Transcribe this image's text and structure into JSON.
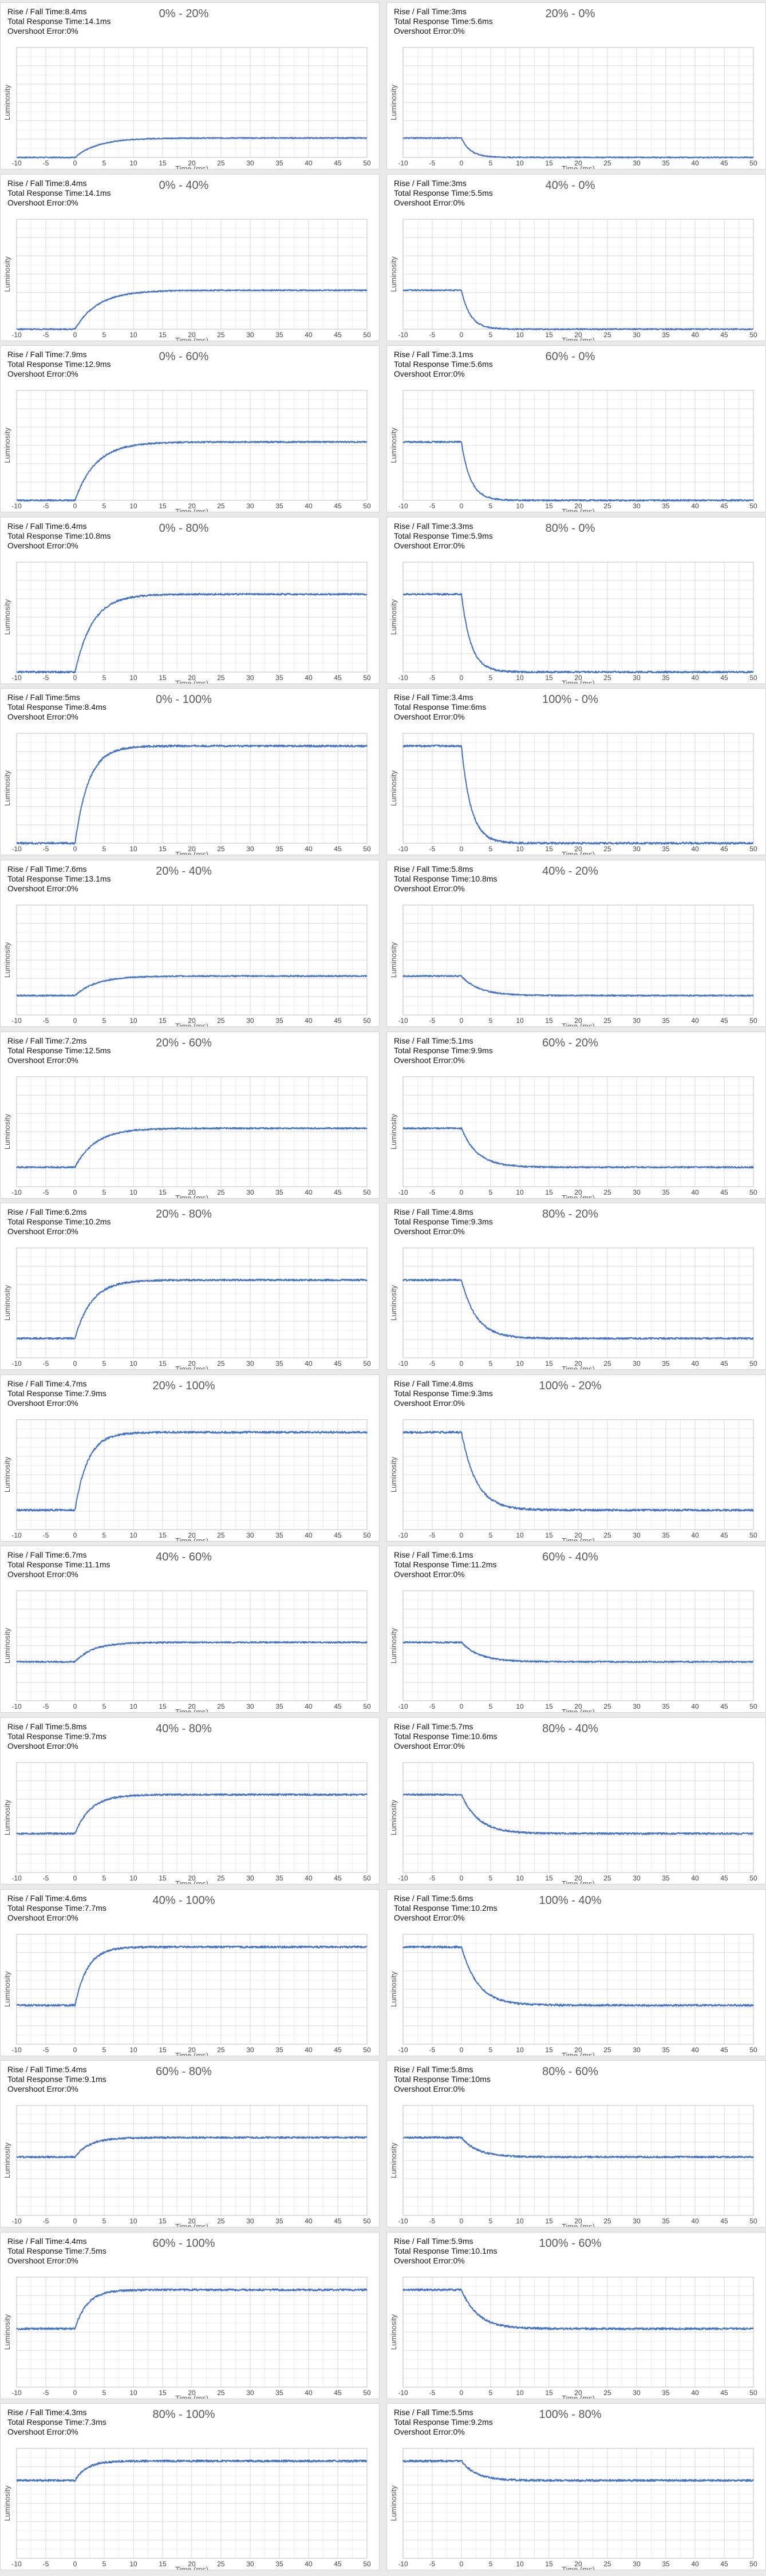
{
  "colors": {
    "curve": "#4472c4",
    "grid_major": "#d9d9d9",
    "grid_minor": "#eeeeee",
    "axis": "#bfbfbf"
  },
  "stat_labels": {
    "rise_fall": "Rise / Fall Time:",
    "total": "Total Response Time:",
    "overshoot": "Overshoot Error:"
  },
  "chart_data": [
    {
      "type": "line",
      "direction": "rise",
      "title": "0% - 20%",
      "rise_fall": "8.4ms",
      "total": "14.1ms",
      "overshoot": "0%",
      "from_level": 0.0,
      "to_level": 0.2,
      "xlabel": "Time (ms)",
      "ylabel": "Luminosity",
      "x_ticks": [
        -10,
        -5,
        0,
        5,
        10,
        15,
        20,
        25,
        30,
        35,
        40,
        45,
        50
      ],
      "xlim": [
        -10,
        50
      ]
    },
    {
      "type": "line",
      "direction": "fall",
      "title": "20% - 0%",
      "rise_fall": "3ms",
      "total": "5.6ms",
      "overshoot": "0%",
      "from_level": 0.2,
      "to_level": 0.0,
      "xlabel": "Time (ms)",
      "ylabel": "Luminosity",
      "x_ticks": [
        -10,
        -5,
        0,
        5,
        10,
        15,
        20,
        25,
        30,
        35,
        40,
        45,
        50
      ],
      "xlim": [
        -10,
        50
      ]
    },
    {
      "type": "line",
      "direction": "rise",
      "title": "0% - 40%",
      "rise_fall": "8.4ms",
      "total": "14.1ms",
      "overshoot": "0%",
      "from_level": 0.0,
      "to_level": 0.4,
      "xlabel": "Time (ms)",
      "ylabel": "Luminosity",
      "x_ticks": [
        -10,
        -5,
        0,
        5,
        10,
        15,
        20,
        25,
        30,
        35,
        40,
        45,
        50
      ],
      "xlim": [
        -10,
        50
      ]
    },
    {
      "type": "line",
      "direction": "fall",
      "title": "40% - 0%",
      "rise_fall": "3ms",
      "total": "5.5ms",
      "overshoot": "0%",
      "from_level": 0.4,
      "to_level": 0.0,
      "xlabel": "Time (ms)",
      "ylabel": "Luminosity",
      "x_ticks": [
        -10,
        -5,
        0,
        5,
        10,
        15,
        20,
        25,
        30,
        35,
        40,
        45,
        50
      ],
      "xlim": [
        -10,
        50
      ]
    },
    {
      "type": "line",
      "direction": "rise",
      "title": "0% - 60%",
      "rise_fall": "7.9ms",
      "total": "12.9ms",
      "overshoot": "0%",
      "from_level": 0.0,
      "to_level": 0.6,
      "xlabel": "Time (ms)",
      "ylabel": "Luminosity",
      "x_ticks": [
        -10,
        -5,
        0,
        5,
        10,
        15,
        20,
        25,
        30,
        35,
        40,
        45,
        50
      ],
      "xlim": [
        -10,
        50
      ]
    },
    {
      "type": "line",
      "direction": "fall",
      "title": "60% - 0%",
      "rise_fall": "3.1ms",
      "total": "5.6ms",
      "overshoot": "0%",
      "from_level": 0.6,
      "to_level": 0.0,
      "xlabel": "Time (ms)",
      "ylabel": "Luminosity",
      "x_ticks": [
        -10,
        -5,
        0,
        5,
        10,
        15,
        20,
        25,
        30,
        35,
        40,
        45,
        50
      ],
      "xlim": [
        -10,
        50
      ]
    },
    {
      "type": "line",
      "direction": "rise",
      "title": "0% - 80%",
      "rise_fall": "6.4ms",
      "total": "10.8ms",
      "overshoot": "0%",
      "from_level": 0.0,
      "to_level": 0.8,
      "xlabel": "Time (ms)",
      "ylabel": "Luminosity",
      "x_ticks": [
        -10,
        -5,
        0,
        5,
        10,
        15,
        20,
        25,
        30,
        35,
        40,
        45,
        50
      ],
      "xlim": [
        -10,
        50
      ]
    },
    {
      "type": "line",
      "direction": "fall",
      "title": "80% - 0%",
      "rise_fall": "3.3ms",
      "total": "5.9ms",
      "overshoot": "0%",
      "from_level": 0.8,
      "to_level": 0.0,
      "xlabel": "Time (ms)",
      "ylabel": "Luminosity",
      "x_ticks": [
        -10,
        -5,
        0,
        5,
        10,
        15,
        20,
        25,
        30,
        35,
        40,
        45,
        50
      ],
      "xlim": [
        -10,
        50
      ]
    },
    {
      "type": "line",
      "direction": "rise",
      "title": "0% - 100%",
      "rise_fall": "5ms",
      "total": "8.4ms",
      "overshoot": "0%",
      "from_level": 0.0,
      "to_level": 1.0,
      "xlabel": "Time (ms)",
      "ylabel": "Luminosity",
      "x_ticks": [
        -10,
        -5,
        0,
        5,
        10,
        15,
        20,
        25,
        30,
        35,
        40,
        45,
        50
      ],
      "xlim": [
        -10,
        50
      ]
    },
    {
      "type": "line",
      "direction": "fall",
      "title": "100% - 0%",
      "rise_fall": "3.4ms",
      "total": "6ms",
      "overshoot": "0%",
      "from_level": 1.0,
      "to_level": 0.0,
      "xlabel": "Time (ms)",
      "ylabel": "Luminosity",
      "x_ticks": [
        -10,
        -5,
        0,
        5,
        10,
        15,
        20,
        25,
        30,
        35,
        40,
        45,
        50
      ],
      "xlim": [
        -10,
        50
      ]
    },
    {
      "type": "line",
      "direction": "rise",
      "title": "20% - 40%",
      "rise_fall": "7.6ms",
      "total": "13.1ms",
      "overshoot": "0%",
      "from_level": 0.2,
      "to_level": 0.4,
      "xlabel": "Time (ms)",
      "ylabel": "Luminosity",
      "x_ticks": [
        -10,
        -5,
        0,
        5,
        10,
        15,
        20,
        25,
        30,
        35,
        40,
        45,
        50
      ],
      "xlim": [
        -10,
        50
      ]
    },
    {
      "type": "line",
      "direction": "fall",
      "title": "40% - 20%",
      "rise_fall": "5.8ms",
      "total": "10.8ms",
      "overshoot": "0%",
      "from_level": 0.4,
      "to_level": 0.2,
      "xlabel": "Time (ms)",
      "ylabel": "Luminosity",
      "x_ticks": [
        -10,
        -5,
        0,
        5,
        10,
        15,
        20,
        25,
        30,
        35,
        40,
        45,
        50
      ],
      "xlim": [
        -10,
        50
      ]
    },
    {
      "type": "line",
      "direction": "rise",
      "title": "20% - 60%",
      "rise_fall": "7.2ms",
      "total": "12.5ms",
      "overshoot": "0%",
      "from_level": 0.2,
      "to_level": 0.6,
      "xlabel": "Time (ms)",
      "ylabel": "Luminosity",
      "x_ticks": [
        -10,
        -5,
        0,
        5,
        10,
        15,
        20,
        25,
        30,
        35,
        40,
        45,
        50
      ],
      "xlim": [
        -10,
        50
      ]
    },
    {
      "type": "line",
      "direction": "fall",
      "title": "60% - 20%",
      "rise_fall": "5.1ms",
      "total": "9.9ms",
      "overshoot": "0%",
      "from_level": 0.6,
      "to_level": 0.2,
      "xlabel": "Time (ms)",
      "ylabel": "Luminosity",
      "x_ticks": [
        -10,
        -5,
        0,
        5,
        10,
        15,
        20,
        25,
        30,
        35,
        40,
        45,
        50
      ],
      "xlim": [
        -10,
        50
      ]
    },
    {
      "type": "line",
      "direction": "rise",
      "title": "20% - 80%",
      "rise_fall": "6.2ms",
      "total": "10.2ms",
      "overshoot": "0%",
      "from_level": 0.2,
      "to_level": 0.8,
      "xlabel": "Time (ms)",
      "ylabel": "Luminosity",
      "x_ticks": [
        -10,
        -5,
        0,
        5,
        10,
        15,
        20,
        25,
        30,
        35,
        40,
        45,
        50
      ],
      "xlim": [
        -10,
        50
      ]
    },
    {
      "type": "line",
      "direction": "fall",
      "title": "80% - 20%",
      "rise_fall": "4.8ms",
      "total": "9.3ms",
      "overshoot": "0%",
      "from_level": 0.8,
      "to_level": 0.2,
      "xlabel": "Time (ms)",
      "ylabel": "Luminosity",
      "x_ticks": [
        -10,
        -5,
        0,
        5,
        10,
        15,
        20,
        25,
        30,
        35,
        40,
        45,
        50
      ],
      "xlim": [
        -10,
        50
      ]
    },
    {
      "type": "line",
      "direction": "rise",
      "title": "20% - 100%",
      "rise_fall": "4.7ms",
      "total": "7.9ms",
      "overshoot": "0%",
      "from_level": 0.2,
      "to_level": 1.0,
      "xlabel": "Time (ms)",
      "ylabel": "Luminosity",
      "x_ticks": [
        -10,
        -5,
        0,
        5,
        10,
        15,
        20,
        25,
        30,
        35,
        40,
        45,
        50
      ],
      "xlim": [
        -10,
        50
      ]
    },
    {
      "type": "line",
      "direction": "fall",
      "title": "100% - 20%",
      "rise_fall": "4.8ms",
      "total": "9.3ms",
      "overshoot": "0%",
      "from_level": 1.0,
      "to_level": 0.2,
      "xlabel": "Time (ms)",
      "ylabel": "Luminosity",
      "x_ticks": [
        -10,
        -5,
        0,
        5,
        10,
        15,
        20,
        25,
        30,
        35,
        40,
        45,
        50
      ],
      "xlim": [
        -10,
        50
      ]
    },
    {
      "type": "line",
      "direction": "rise",
      "title": "40% - 60%",
      "rise_fall": "6.7ms",
      "total": "11.1ms",
      "overshoot": "0%",
      "from_level": 0.4,
      "to_level": 0.6,
      "xlabel": "Time (ms)",
      "ylabel": "Luminosity",
      "x_ticks": [
        -10,
        -5,
        0,
        5,
        10,
        15,
        20,
        25,
        30,
        35,
        40,
        45,
        50
      ],
      "xlim": [
        -10,
        50
      ]
    },
    {
      "type": "line",
      "direction": "fall",
      "title": "60% - 40%",
      "rise_fall": "6.1ms",
      "total": "11.2ms",
      "overshoot": "0%",
      "from_level": 0.6,
      "to_level": 0.4,
      "xlabel": "Time (ms)",
      "ylabel": "Luminosity",
      "x_ticks": [
        -10,
        -5,
        0,
        5,
        10,
        15,
        20,
        25,
        30,
        35,
        40,
        45,
        50
      ],
      "xlim": [
        -10,
        50
      ]
    },
    {
      "type": "line",
      "direction": "rise",
      "title": "40% - 80%",
      "rise_fall": "5.8ms",
      "total": "9.7ms",
      "overshoot": "0%",
      "from_level": 0.4,
      "to_level": 0.8,
      "xlabel": "Time (ms)",
      "ylabel": "Luminosity",
      "x_ticks": [
        -10,
        -5,
        0,
        5,
        10,
        15,
        20,
        25,
        30,
        35,
        40,
        45,
        50
      ],
      "xlim": [
        -10,
        50
      ]
    },
    {
      "type": "line",
      "direction": "fall",
      "title": "80% - 40%",
      "rise_fall": "5.7ms",
      "total": "10.6ms",
      "overshoot": "0%",
      "from_level": 0.8,
      "to_level": 0.4,
      "xlabel": "Time (ms)",
      "ylabel": "Luminosity",
      "x_ticks": [
        -10,
        -5,
        0,
        5,
        10,
        15,
        20,
        25,
        30,
        35,
        40,
        45,
        50
      ],
      "xlim": [
        -10,
        50
      ]
    },
    {
      "type": "line",
      "direction": "rise",
      "title": "40% - 100%",
      "rise_fall": "4.6ms",
      "total": "7.7ms",
      "overshoot": "0%",
      "from_level": 0.4,
      "to_level": 1.0,
      "xlabel": "Time (ms)",
      "ylabel": "Luminosity",
      "x_ticks": [
        -10,
        -5,
        0,
        5,
        10,
        15,
        20,
        25,
        30,
        35,
        40,
        45,
        50
      ],
      "xlim": [
        -10,
        50
      ]
    },
    {
      "type": "line",
      "direction": "fall",
      "title": "100% - 40%",
      "rise_fall": "5.6ms",
      "total": "10.2ms",
      "overshoot": "0%",
      "from_level": 1.0,
      "to_level": 0.4,
      "xlabel": "Time (ms)",
      "ylabel": "Luminosity",
      "x_ticks": [
        -10,
        -5,
        0,
        5,
        10,
        15,
        20,
        25,
        30,
        35,
        40,
        45,
        50
      ],
      "xlim": [
        -10,
        50
      ]
    },
    {
      "type": "line",
      "direction": "rise",
      "title": "60% - 80%",
      "rise_fall": "5.4ms",
      "total": "9.1ms",
      "overshoot": "0%",
      "from_level": 0.6,
      "to_level": 0.8,
      "xlabel": "Time (ms)",
      "ylabel": "Luminosity",
      "x_ticks": [
        -10,
        -5,
        0,
        5,
        10,
        15,
        20,
        25,
        30,
        35,
        40,
        45,
        50
      ],
      "xlim": [
        -10,
        50
      ]
    },
    {
      "type": "line",
      "direction": "fall",
      "title": "80% - 60%",
      "rise_fall": "5.8ms",
      "total": "10ms",
      "overshoot": "0%",
      "from_level": 0.8,
      "to_level": 0.6,
      "xlabel": "Time (ms)",
      "ylabel": "Luminosity",
      "x_ticks": [
        -10,
        -5,
        0,
        5,
        10,
        15,
        20,
        25,
        30,
        35,
        40,
        45,
        50
      ],
      "xlim": [
        -10,
        50
      ]
    },
    {
      "type": "line",
      "direction": "rise",
      "title": "60% - 100%",
      "rise_fall": "4.4ms",
      "total": "7.5ms",
      "overshoot": "0%",
      "from_level": 0.6,
      "to_level": 1.0,
      "xlabel": "Time (ms)",
      "ylabel": "Luminosity",
      "x_ticks": [
        -10,
        -5,
        0,
        5,
        10,
        15,
        20,
        25,
        30,
        35,
        40,
        45,
        50
      ],
      "xlim": [
        -10,
        50
      ]
    },
    {
      "type": "line",
      "direction": "fall",
      "title": "100% - 60%",
      "rise_fall": "5.9ms",
      "total": "10.1ms",
      "overshoot": "0%",
      "from_level": 1.0,
      "to_level": 0.6,
      "xlabel": "Time (ms)",
      "ylabel": "Luminosity",
      "x_ticks": [
        -10,
        -5,
        0,
        5,
        10,
        15,
        20,
        25,
        30,
        35,
        40,
        45,
        50
      ],
      "xlim": [
        -10,
        50
      ]
    },
    {
      "type": "line",
      "direction": "rise",
      "title": "80% - 100%",
      "rise_fall": "4.3ms",
      "total": "7.3ms",
      "overshoot": "0%",
      "from_level": 0.8,
      "to_level": 1.0,
      "xlabel": "Time (ms)",
      "ylabel": "Luminosity",
      "x_ticks": [
        -10,
        -5,
        0,
        5,
        10,
        15,
        20,
        25,
        30,
        35,
        40,
        45,
        50
      ],
      "xlim": [
        -10,
        50
      ]
    },
    {
      "type": "line",
      "direction": "fall",
      "title": "100% - 80%",
      "rise_fall": "5.5ms",
      "total": "9.2ms",
      "overshoot": "0%",
      "from_level": 1.0,
      "to_level": 0.8,
      "xlabel": "Time (ms)",
      "ylabel": "Luminosity",
      "x_ticks": [
        -10,
        -5,
        0,
        5,
        10,
        15,
        20,
        25,
        30,
        35,
        40,
        45,
        50
      ],
      "xlim": [
        -10,
        50
      ]
    }
  ]
}
